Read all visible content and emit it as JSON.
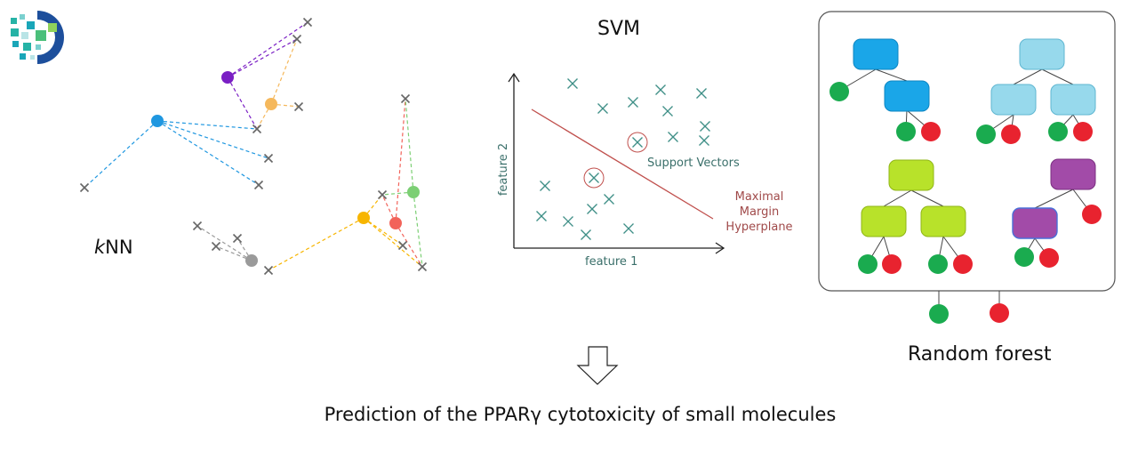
{
  "knn": {
    "title_prefix": "k",
    "title_suffix": "NN",
    "colors": {
      "cross": "#666666",
      "purple": "#7a1fc4",
      "orange": "#f5b85c",
      "blue": "#1f97e0",
      "yellow": "#f7b500",
      "red": "#f2635a",
      "green": "#7ccf74",
      "gray": "#9a9a9a"
    }
  },
  "svm": {
    "title": "SVM",
    "xlabel": "feature 1",
    "ylabel": "feature 2",
    "support_vectors_label": "Support Vectors",
    "hyperplane_label": "Maximal Margin Hyperplane",
    "colors": {
      "cross": "#3f8f87",
      "hyperplane": "#c0504d",
      "axis": "#222222"
    }
  },
  "random_forest": {
    "title": "Random forest",
    "colors": {
      "tree1": "#1aa6e8",
      "tree2": "#97d9ec",
      "tree3": "#b8e22a",
      "tree4": "#a24ba8",
      "leaf_green": "#1aab4f",
      "leaf_red": "#e8232f",
      "frame": "#555555"
    }
  },
  "conclusion": "Prediction of the PPARγ cytotoxicity of small molecules"
}
